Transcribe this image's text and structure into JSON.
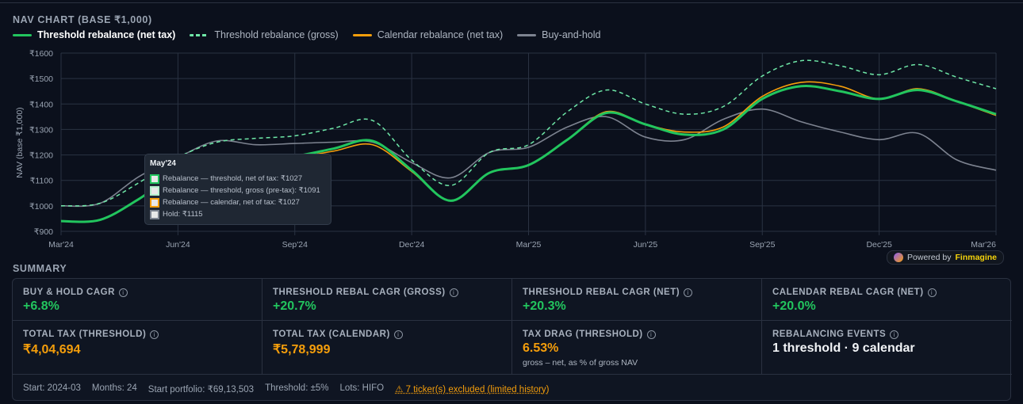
{
  "chart_section_title": "NAV CHART (BASE ₹1,000)",
  "colors": {
    "threshold_net": "#22c55e",
    "threshold_gross": "#6ee7a7",
    "calendar_net": "#f59e0b",
    "hold": "#7d8390"
  },
  "chart_data": {
    "type": "line",
    "ylabel": "NAV (base ₹1,000)",
    "ylim": [
      900,
      1600
    ],
    "yticks": [
      "₹900",
      "₹1000",
      "₹1100",
      "₹1200",
      "₹1300",
      "₹1400",
      "₹1500",
      "₹1600"
    ],
    "xticks": [
      "Mar'24",
      "Jun'24",
      "Sep'24",
      "Dec'24",
      "Mar'25",
      "Jun'25",
      "Sep'25",
      "Dec'25",
      "Mar'26"
    ],
    "grid": true,
    "legend": "top-left",
    "x": [
      "Mar'24",
      "Apr'24",
      "May'24",
      "Jun'24",
      "Jul'24",
      "Aug'24",
      "Sep'24",
      "Oct'24",
      "Nov'24",
      "Dec'24",
      "Jan'25",
      "Feb'25",
      "Mar'25",
      "Apr'25",
      "May'25",
      "Jun'25",
      "Jul'25",
      "Aug'25",
      "Sep'25",
      "Oct'25",
      "Nov'25",
      "Dec'25",
      "Jan'26",
      "Feb'26",
      "Mar'26"
    ],
    "series": [
      {
        "name": "Threshold rebalance (net tax)",
        "style": "solid-thick",
        "values": [
          940,
          945,
          1027,
          1130,
          1170,
          1185,
          1195,
          1225,
          1255,
          1140,
          1020,
          1130,
          1160,
          1260,
          1365,
          1320,
          1280,
          1300,
          1420,
          1470,
          1450,
          1420,
          1455,
          1410,
          1360
        ]
      },
      {
        "name": "Threshold rebalance (gross)",
        "style": "dashed",
        "values": [
          1000,
          1010,
          1091,
          1190,
          1250,
          1265,
          1275,
          1305,
          1335,
          1180,
          1080,
          1210,
          1240,
          1370,
          1455,
          1400,
          1360,
          1390,
          1510,
          1570,
          1550,
          1515,
          1555,
          1505,
          1460
        ]
      },
      {
        "name": "Calendar rebalance (net tax)",
        "style": "solid",
        "values": [
          940,
          945,
          1027,
          1130,
          1170,
          1180,
          1190,
          1215,
          1240,
          1135,
          1020,
          1130,
          1160,
          1260,
          1370,
          1320,
          1290,
          1310,
          1430,
          1485,
          1470,
          1420,
          1460,
          1410,
          1355
        ]
      },
      {
        "name": "Buy-and-hold",
        "style": "solid",
        "values": [
          1000,
          1010,
          1115,
          1190,
          1255,
          1240,
          1245,
          1250,
          1250,
          1170,
          1110,
          1210,
          1230,
          1310,
          1350,
          1270,
          1260,
          1340,
          1380,
          1330,
          1290,
          1260,
          1285,
          1180,
          1140
        ]
      }
    ]
  },
  "tooltip": {
    "title": "May'24",
    "rows": [
      "Rebalance — threshold, net of tax: ₹1027",
      "Rebalance — threshold, gross (pre-tax): ₹1091",
      "Rebalance — calendar, net of tax: ₹1027",
      "Hold: ₹1115"
    ]
  },
  "powered": {
    "prefix": "Powered by",
    "brand": "Finmagine"
  },
  "summary": {
    "title": "SUMMARY",
    "cells": [
      {
        "label": "BUY & HOLD CAGR",
        "value": "+6.8%"
      },
      {
        "label": "THRESHOLD REBAL CAGR (GROSS)",
        "value": "+20.7%"
      },
      {
        "label": "THRESHOLD REBAL CAGR (NET)",
        "value": "+20.3%"
      },
      {
        "label": "CALENDAR REBAL CAGR (NET)",
        "value": "+20.0%"
      },
      {
        "label": "TOTAL TAX (THRESHOLD)",
        "value": "₹4,04,694"
      },
      {
        "label": "TOTAL TAX (CALENDAR)",
        "value": "₹5,78,999"
      },
      {
        "label": "TAX DRAG (THRESHOLD)",
        "value": "6.53%",
        "sub": "gross – net, as % of gross NAV"
      },
      {
        "label": "REBALANCING EVENTS",
        "value": "1 threshold · 9 calendar"
      }
    ],
    "info_glyph": "i",
    "footer": {
      "start": "Start: 2024-03",
      "months": "Months: 24",
      "portfolio": "Start portfolio: ₹69,13,503",
      "threshold": "Threshold: ±5%",
      "lots": "Lots: HIFO",
      "warning": "⚠ 7 ticker(s) excluded (limited history)"
    }
  }
}
